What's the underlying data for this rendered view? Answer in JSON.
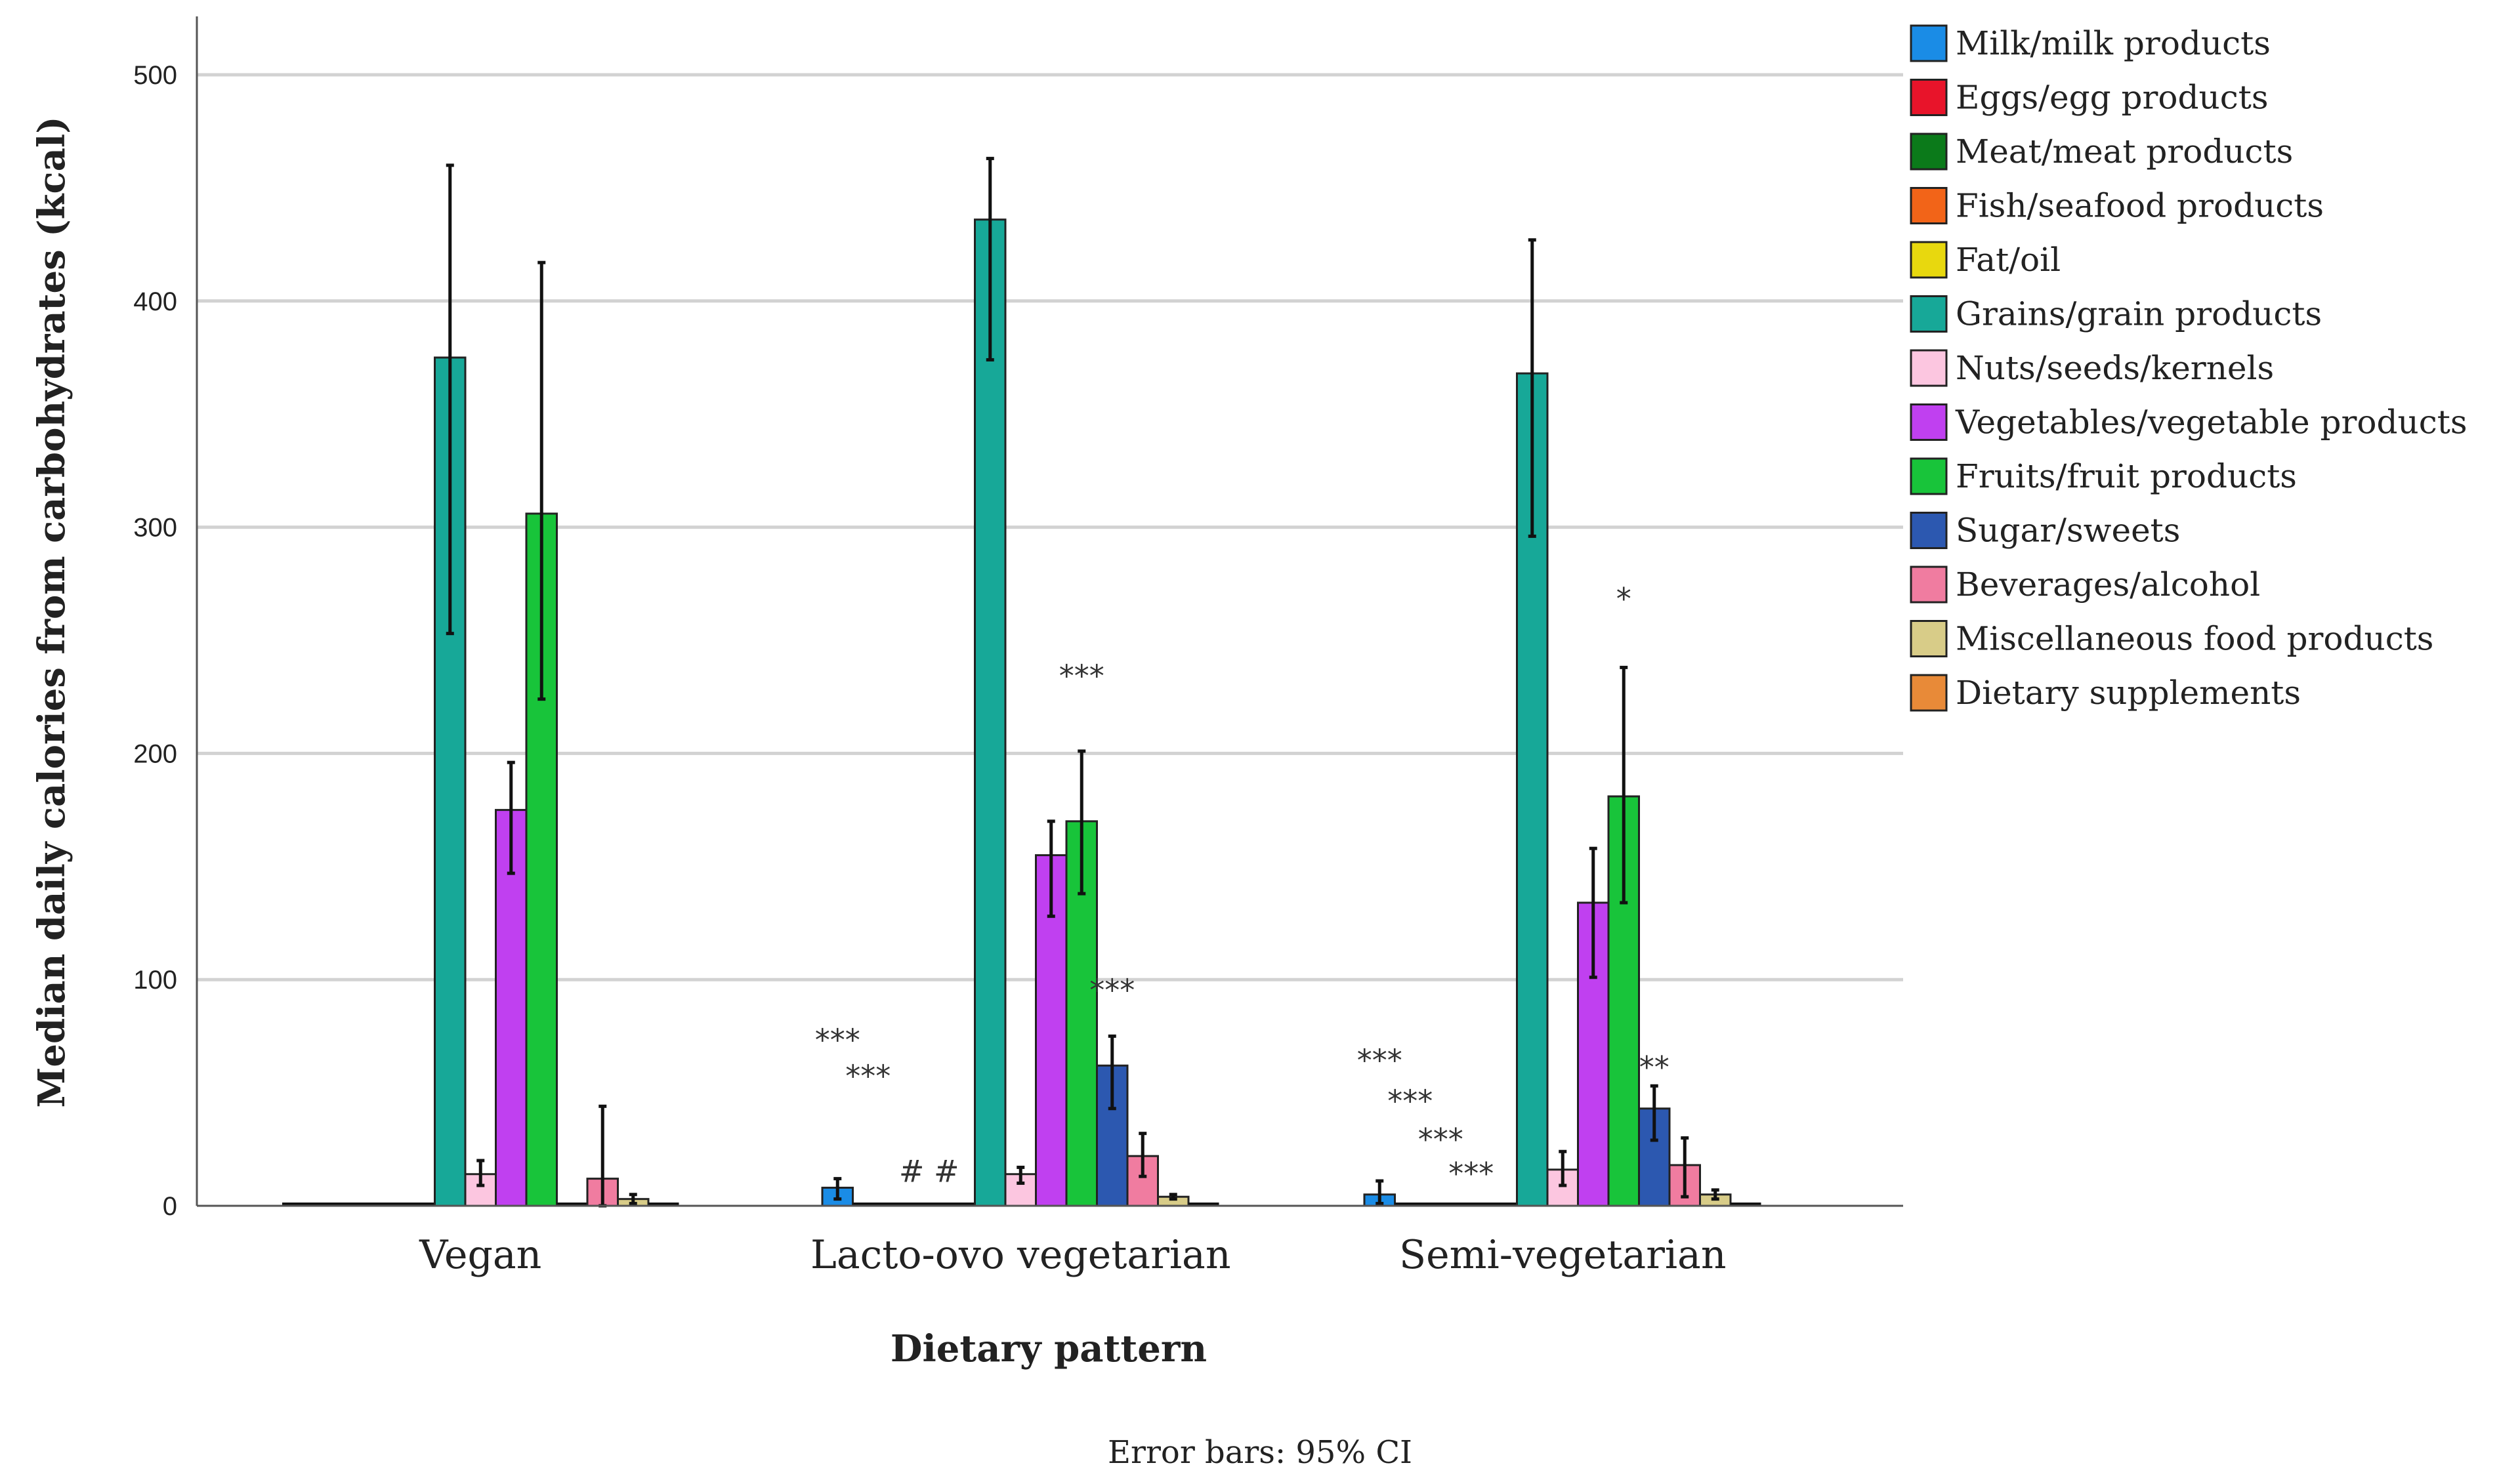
{
  "chart_data": {
    "type": "bar",
    "title": "",
    "xlabel": "Dietary pattern",
    "ylabel": "Median daily calories from carbohydrates (kcal)",
    "ylim": [
      0,
      520
    ],
    "yticks": [
      0,
      100,
      200,
      300,
      400,
      500
    ],
    "grid": "horizontal",
    "legend_position": "right",
    "note": "Error bars: 95% CI",
    "categories": [
      "Vegan",
      "Lacto-ovo vegetarian",
      "Semi-vegetarian"
    ],
    "series": [
      {
        "name": "Milk/milk products",
        "color": "#1a8ce6",
        "values": [
          0,
          8,
          5
        ],
        "ci": [
          [
            0,
            0
          ],
          [
            3,
            12
          ],
          [
            1,
            11
          ]
        ]
      },
      {
        "name": "Eggs/egg products",
        "color": "#e8142a",
        "values": [
          0,
          0,
          0
        ],
        "ci": [
          [
            0,
            0
          ],
          [
            0,
            0
          ],
          [
            0,
            0
          ]
        ]
      },
      {
        "name": "Meat/meat products",
        "color": "#0b7a1a",
        "values": [
          0,
          0,
          0
        ],
        "ci": [
          [
            0,
            0
          ],
          [
            0,
            0
          ],
          [
            0,
            0
          ]
        ]
      },
      {
        "name": "Fish/seafood products",
        "color": "#f26418",
        "values": [
          0,
          0,
          0
        ],
        "ci": [
          [
            0,
            0
          ],
          [
            0,
            0
          ],
          [
            0,
            0
          ]
        ]
      },
      {
        "name": "Fat/oil",
        "color": "#e8d80e",
        "values": [
          0,
          0,
          0
        ],
        "ci": [
          [
            0,
            0
          ],
          [
            0,
            0
          ],
          [
            0,
            0
          ]
        ]
      },
      {
        "name": "Grains/grain products",
        "color": "#17a898",
        "values": [
          375,
          436,
          368
        ],
        "ci": [
          [
            253,
            460
          ],
          [
            374,
            463
          ],
          [
            296,
            427
          ]
        ]
      },
      {
        "name": "Nuts/seeds/kernels",
        "color": "#fcc6e0",
        "values": [
          14,
          14,
          16
        ],
        "ci": [
          [
            9,
            20
          ],
          [
            10,
            17
          ],
          [
            9,
            24
          ]
        ]
      },
      {
        "name": "Vegetables/vegetable products",
        "color": "#c040f0",
        "values": [
          175,
          155,
          134
        ],
        "ci": [
          [
            147,
            196
          ],
          [
            128,
            170
          ],
          [
            101,
            158
          ]
        ]
      },
      {
        "name": "Fruits/fruit products",
        "color": "#18c43a",
        "values": [
          306,
          170,
          181
        ],
        "ci": [
          [
            224,
            417
          ],
          [
            138,
            201
          ],
          [
            134,
            238
          ]
        ]
      },
      {
        "name": "Sugar/sweets",
        "color": "#2c58b0",
        "values": [
          0,
          62,
          43
        ],
        "ci": [
          [
            0,
            0
          ],
          [
            43,
            75
          ],
          [
            29,
            53
          ]
        ]
      },
      {
        "name": "Beverages/alcohol",
        "color": "#f07ca0",
        "values": [
          12,
          22,
          18
        ],
        "ci": [
          [
            0,
            44
          ],
          [
            13,
            32
          ],
          [
            4,
            30
          ]
        ]
      },
      {
        "name": "Miscellaneous food products",
        "color": "#d8cc88",
        "values": [
          3,
          4,
          5
        ],
        "ci": [
          [
            1,
            5
          ],
          [
            3,
            5
          ],
          [
            3,
            7
          ]
        ]
      },
      {
        "name": "Dietary supplements",
        "color": "#e88a38",
        "values": [
          0,
          0,
          0
        ],
        "ci": [
          [
            0,
            0
          ],
          [
            0,
            0
          ],
          [
            0,
            0
          ]
        ]
      }
    ],
    "annotations": [
      {
        "text": "***",
        "category": 1,
        "series": 0,
        "y": 75
      },
      {
        "text": "***",
        "category": 1,
        "series": 1,
        "y": 59
      },
      {
        "text": "# #",
        "category": 1,
        "series": 3,
        "y": 17
      },
      {
        "text": "***",
        "category": 1,
        "series": 8,
        "y": 236
      },
      {
        "text": "***",
        "category": 1,
        "series": 9,
        "y": 97
      },
      {
        "text": "***",
        "category": 2,
        "series": 0,
        "y": 66
      },
      {
        "text": "***",
        "category": 2,
        "series": 1,
        "y": 48
      },
      {
        "text": "***",
        "category": 2,
        "series": 2,
        "y": 31
      },
      {
        "text": "***",
        "category": 2,
        "series": 3,
        "y": 16
      },
      {
        "text": "*",
        "category": 2,
        "series": 8,
        "y": 270
      },
      {
        "text": "**",
        "category": 2,
        "series": 9,
        "y": 63
      }
    ]
  }
}
